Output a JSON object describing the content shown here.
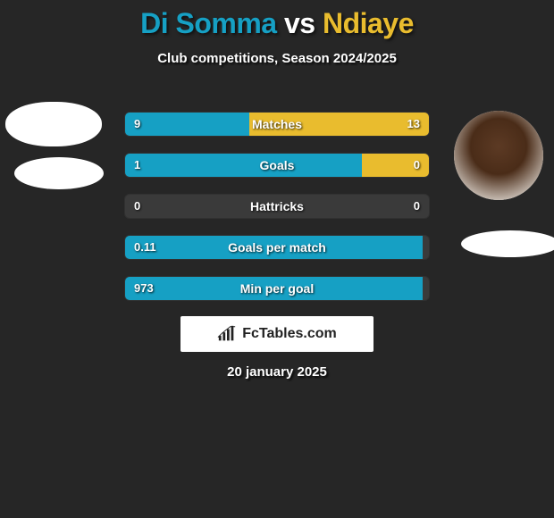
{
  "title": {
    "player1": "Di Somma",
    "vs": "vs",
    "player2": "Ndiaye",
    "player1_color": "#16a0c4",
    "player2_color": "#e9bc2e"
  },
  "subtitle": "Club competitions, Season 2024/2025",
  "colors": {
    "left_accent": "#16a0c4",
    "right_accent": "#e9bc2e",
    "bar_bg": "#3a3a3a",
    "page_bg": "#262626",
    "text": "#ffffff"
  },
  "stats": [
    {
      "label": "Matches",
      "left_val": "9",
      "right_val": "13",
      "left_pct": 40.9,
      "right_pct": 59.1
    },
    {
      "label": "Goals",
      "left_val": "1",
      "right_val": "0",
      "left_pct": 78.0,
      "right_pct": 22.0
    },
    {
      "label": "Hattricks",
      "left_val": "0",
      "right_val": "0",
      "left_pct": 0,
      "right_pct": 0
    },
    {
      "label": "Goals per match",
      "left_val": "0.11",
      "right_val": "",
      "left_pct": 98.0,
      "right_pct": 0
    },
    {
      "label": "Min per goal",
      "left_val": "973",
      "right_val": "",
      "left_pct": 98.0,
      "right_pct": 0
    }
  ],
  "brand": {
    "text": "FcTables.com"
  },
  "date": "20 january 2025"
}
